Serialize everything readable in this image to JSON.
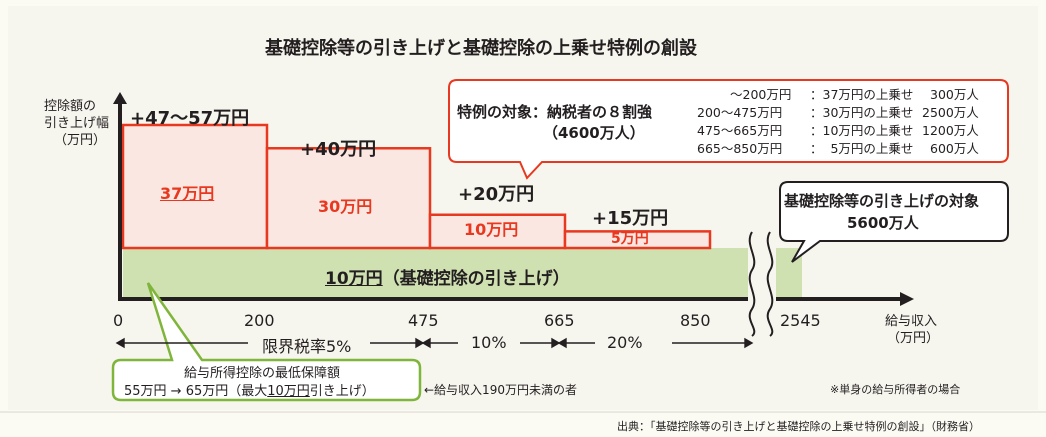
{
  "title": "基礎控除等の引き上げと基礎控除の上乗せ特例の創設",
  "colors": {
    "red": "#e8381f",
    "pink": "#fbe7e2",
    "green": "#cfe0b1",
    "green_border": "#7fb53b",
    "text": "#231f20"
  },
  "chart_data": {
    "type": "bar",
    "y_axis_label": [
      "控除額の",
      "引き上げ幅",
      "（万円）"
    ],
    "x_axis_label": [
      "給与収入",
      "（万円）"
    ],
    "x_ticks": [
      "0",
      "200",
      "475",
      "665",
      "850",
      "2545"
    ],
    "base": {
      "label": "10万円（基礎控除の引き上げ）",
      "amount_label": "10万円",
      "suffix": "（基礎控除の引き上げ）",
      "value": 10,
      "x_range": [
        "0",
        "2545"
      ]
    },
    "special": [
      {
        "range": [
          "0",
          "200"
        ],
        "value": 37,
        "top_label": "+47～57万円",
        "inner_label": "37万円"
      },
      {
        "range": [
          "200",
          "475"
        ],
        "value": 30,
        "top_label": "+40万円",
        "inner_label": "30万円"
      },
      {
        "range": [
          "475",
          "665"
        ],
        "value": 10,
        "top_label": "+20万円",
        "inner_label": "10万円"
      },
      {
        "range": [
          "665",
          "850"
        ],
        "value": 5,
        "top_label": "+15万円",
        "inner_label": "5万円"
      }
    ],
    "tax_rates": [
      "限界税率5%",
      "10%",
      "20%"
    ]
  },
  "callout_special": {
    "title_line1": "特例の対象：納税者の８割強",
    "title_line2": "（4600万人）",
    "rows": [
      {
        "range": "～200万円",
        "desc": "：37万円の上乗せ",
        "count": "300万人"
      },
      {
        "range": "200～475万円",
        "desc": "：30万円の上乗せ",
        "count": "2500万人"
      },
      {
        "range": "475～665万円",
        "desc": "：10万円の上乗せ",
        "count": "1200万人"
      },
      {
        "range": "665～850万円",
        "desc": "：  5万円の上乗せ",
        "count": "600万人"
      }
    ]
  },
  "callout_base": {
    "line1": "基礎控除等の引き上げの対象",
    "line2": "5600万人"
  },
  "callout_min": {
    "line1": "給与所得控除の最低保障額",
    "line2_pre": "55万円 → 65万円（最大",
    "line2_u": "10万円",
    "line2_post": "引き上げ）",
    "note": "←給与収入190万円未満の者"
  },
  "footnote": "※単身の給与所得者の場合",
  "source": "出典：「基礎控除等の引き上げと基礎控除の上乗せ特例の創設」（財務省）"
}
